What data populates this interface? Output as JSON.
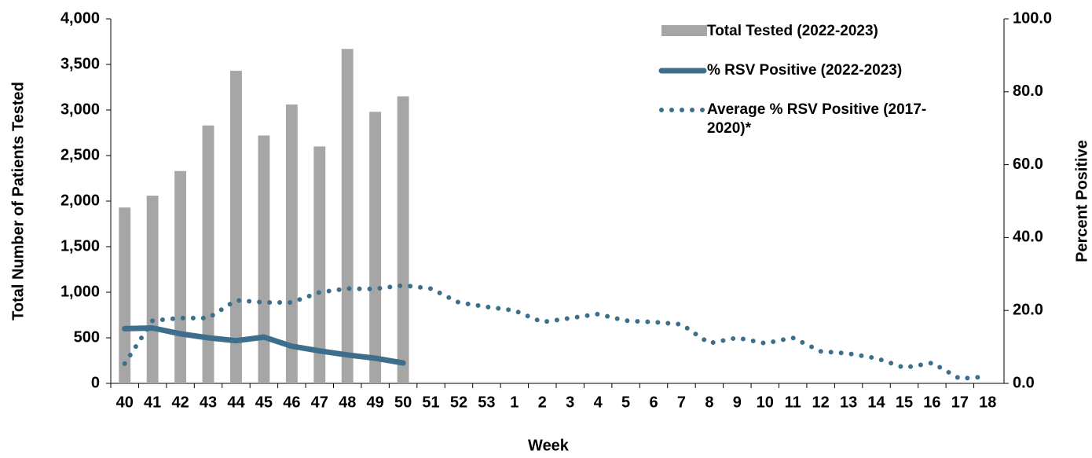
{
  "chart_data": {
    "type": "bar-line",
    "x_label": "Week",
    "y_label": "Total Number of Patients Tested",
    "y2_label": "Percent Positive",
    "categories": [
      "40",
      "41",
      "42",
      "43",
      "44",
      "45",
      "46",
      "47",
      "48",
      "49",
      "50",
      "51",
      "52",
      "53",
      "1",
      "2",
      "3",
      "4",
      "5",
      "6",
      "7",
      "8",
      "9",
      "10",
      "11",
      "12",
      "13",
      "14",
      "15",
      "16",
      "17",
      "18"
    ],
    "ylim": [
      0,
      4000
    ],
    "yticks": [
      0,
      {
        "value": 500,
        "label": "500"
      },
      {
        "value": 1000,
        "label": "1,000"
      },
      {
        "value": 1500,
        "label": "1,500"
      },
      {
        "value": 2000,
        "label": "2,000"
      },
      {
        "value": 2500,
        "label": "2,500"
      },
      {
        "value": 3000,
        "label": "3,000"
      },
      {
        "value": 3500,
        "label": "3,500"
      },
      {
        "value": 4000,
        "label": "4,000"
      }
    ],
    "y2lim": [
      0,
      100
    ],
    "y2ticks": [
      {
        "value": 0,
        "label": "0.0"
      },
      {
        "value": 20,
        "label": "20.0"
      },
      {
        "value": 40,
        "label": "40.0"
      },
      {
        "value": 60,
        "label": "60.0"
      },
      {
        "value": 80,
        "label": "80.0"
      },
      {
        "value": 100,
        "label": "100.0"
      }
    ],
    "grid": false,
    "legend": "top-right",
    "series": [
      {
        "name": "Total Tested (2022-2023)",
        "type": "bar",
        "color": "#a6a6a6",
        "values": [
          1930,
          2060,
          2330,
          2830,
          3430,
          2720,
          3060,
          2600,
          3670,
          2980,
          3150,
          null,
          null,
          null,
          null,
          null,
          null,
          null,
          null,
          null,
          null,
          null,
          null,
          null,
          null,
          null,
          null,
          null,
          null,
          null,
          null,
          null
        ]
      },
      {
        "name": "% RSV Positive (2022-2023)",
        "type": "line",
        "style": "solid",
        "axis": "y2",
        "color": "#3d6e8c",
        "values": [
          15.0,
          15.2,
          13.6,
          12.5,
          11.7,
          12.7,
          10.2,
          8.9,
          7.8,
          6.9,
          5.6,
          null,
          null,
          null,
          null,
          null,
          null,
          null,
          null,
          null,
          null,
          null,
          null,
          null,
          null,
          null,
          null,
          null,
          null,
          null,
          null,
          null
        ]
      },
      {
        "name": "Average % RSV Positive (2017-2020)*",
        "type": "line",
        "style": "dotted",
        "axis": "y2",
        "color": "#3d6e8c",
        "values": [
          5.4,
          17.2,
          17.9,
          17.9,
          22.8,
          22.2,
          22.2,
          25.0,
          26.0,
          25.9,
          26.9,
          26.0,
          22.2,
          21.0,
          20.0,
          16.8,
          17.9,
          19.0,
          17.2,
          16.8,
          16.2,
          11.0,
          12.5,
          11.0,
          12.5,
          8.8,
          8.2,
          6.9,
          4.3,
          5.6,
          1.3,
          1.9
        ]
      }
    ]
  }
}
